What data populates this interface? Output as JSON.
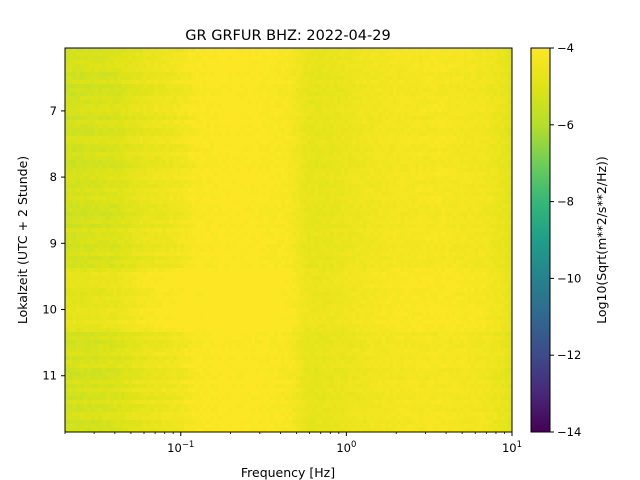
{
  "chart_data": {
    "type": "heatmap",
    "title": "GR GRFUR  BHZ: 2022-04-29",
    "xlabel": "Frequency [Hz]",
    "ylabel": "Lokalzeit (UTC + 2 Stunde)",
    "x_scale": "log",
    "xlim": [
      0.02,
      10
    ],
    "ylim": [
      11.85,
      6.05
    ],
    "x_ticks": [
      {
        "value": 0.1,
        "base": "10",
        "exp": "−1"
      },
      {
        "value": 1,
        "base": "10",
        "exp": "0"
      },
      {
        "value": 10,
        "base": "10",
        "exp": "1"
      }
    ],
    "y_ticks": [
      {
        "value": 7,
        "label": "7"
      },
      {
        "value": 8,
        "label": "8"
      },
      {
        "value": 9,
        "label": "9"
      },
      {
        "value": 10,
        "label": "10"
      },
      {
        "value": 11,
        "label": "11"
      }
    ],
    "colorbar": {
      "label": "Log10(Sqrt(m**2/s**2/Hz))",
      "colormap": "viridis",
      "vmin": -14,
      "vmax": -4,
      "ticks": [
        {
          "value": -4,
          "label": "−4"
        },
        {
          "value": -6,
          "label": "−6"
        },
        {
          "value": -8,
          "label": "−8"
        },
        {
          "value": -10,
          "label": "−10"
        },
        {
          "value": -12,
          "label": "−12"
        },
        {
          "value": -14,
          "label": "−14"
        }
      ]
    },
    "spectrum_profile": [
      {
        "f": 0.02,
        "value": -5.3
      },
      {
        "f": 0.04,
        "value": -5.1
      },
      {
        "f": 0.06,
        "value": -4.7
      },
      {
        "f": 0.1,
        "value": -4.4
      },
      {
        "f": 0.12,
        "value": -4.15
      },
      {
        "f": 0.2,
        "value": -4.0
      },
      {
        "f": 0.3,
        "value": -4.05
      },
      {
        "f": 0.45,
        "value": -4.2
      },
      {
        "f": 0.6,
        "value": -4.75
      },
      {
        "f": 0.8,
        "value": -4.7
      },
      {
        "f": 1.2,
        "value": -4.5
      },
      {
        "f": 2,
        "value": -4.3
      },
      {
        "f": 4,
        "value": -4.25
      },
      {
        "f": 7,
        "value": -4.4
      },
      {
        "f": 9,
        "value": -4.7
      },
      {
        "f": 10,
        "value": -5.0
      }
    ]
  }
}
